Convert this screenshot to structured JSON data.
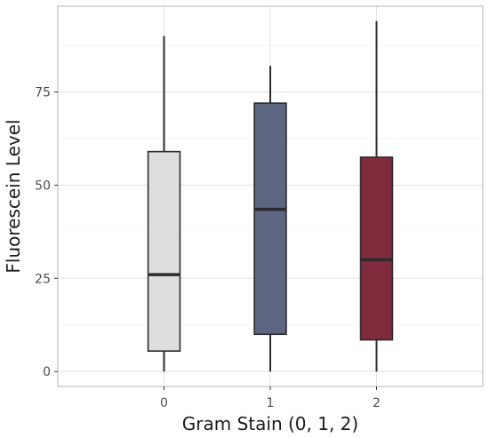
{
  "chart_data": {
    "type": "box",
    "title": "",
    "xlabel": "Gram Stain (0, 1, 2)",
    "ylabel": "Fluorescein Level",
    "categories": [
      "0",
      "1",
      "2"
    ],
    "ylim": [
      -4,
      98
    ],
    "y_ticks": [
      0,
      25,
      50,
      75
    ],
    "y_tick_labels": [
      "0",
      "25",
      "50",
      "75"
    ],
    "grid": true,
    "legend": "none",
    "boxes": [
      {
        "category": "0",
        "min": 0,
        "q1": 5.5,
        "median": 26,
        "q3": 59,
        "max": 90,
        "color": "#dededc"
      },
      {
        "category": "1",
        "min": 0,
        "q1": 10,
        "median": 43.5,
        "q3": 72,
        "max": 82,
        "color": "#5d6680"
      },
      {
        "category": "2",
        "min": 0,
        "q1": 8.5,
        "median": 30,
        "q3": 57.5,
        "max": 94,
        "color": "#7f2b3b"
      }
    ]
  }
}
